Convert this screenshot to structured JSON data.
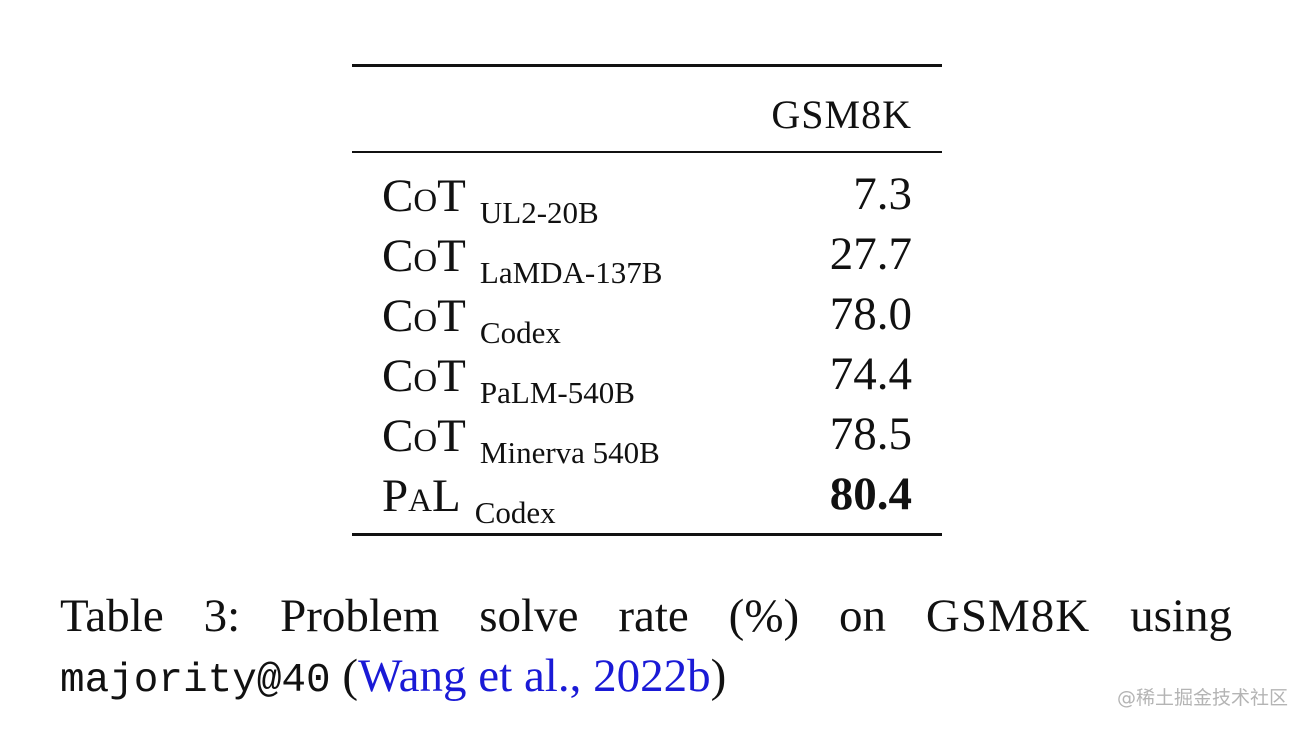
{
  "table": {
    "column_header": "GSM8K",
    "rows": [
      {
        "method": "CoT",
        "model": "UL2-20B",
        "value": "7.3",
        "bold": false
      },
      {
        "method": "CoT",
        "model": "LaMDA-137B",
        "value": "27.7",
        "bold": false
      },
      {
        "method": "CoT",
        "model": "Codex",
        "value": "78.0",
        "bold": false
      },
      {
        "method": "CoT",
        "model": "PaLM-540B",
        "value": "74.4",
        "bold": false
      },
      {
        "method": "CoT",
        "model": "Minerva 540B",
        "value": "78.5",
        "bold": false
      },
      {
        "method": "PaL",
        "model": "Codex",
        "value": "80.4",
        "bold": true
      }
    ]
  },
  "caption": {
    "w1": "Table",
    "w2": "3:",
    "w3": "Problem",
    "w4": "solve",
    "w5": "rate",
    "w6": "(%)",
    "w7": "on",
    "dataset": "GSM8K",
    "w9": "using",
    "code": "majority@40",
    "paren_open": "(",
    "citation": "Wang et al., 2022b",
    "paren_close": ")"
  },
  "colors": {
    "citation_link": "#1a1ad6"
  },
  "watermark": "@稀土掘金技术社区"
}
